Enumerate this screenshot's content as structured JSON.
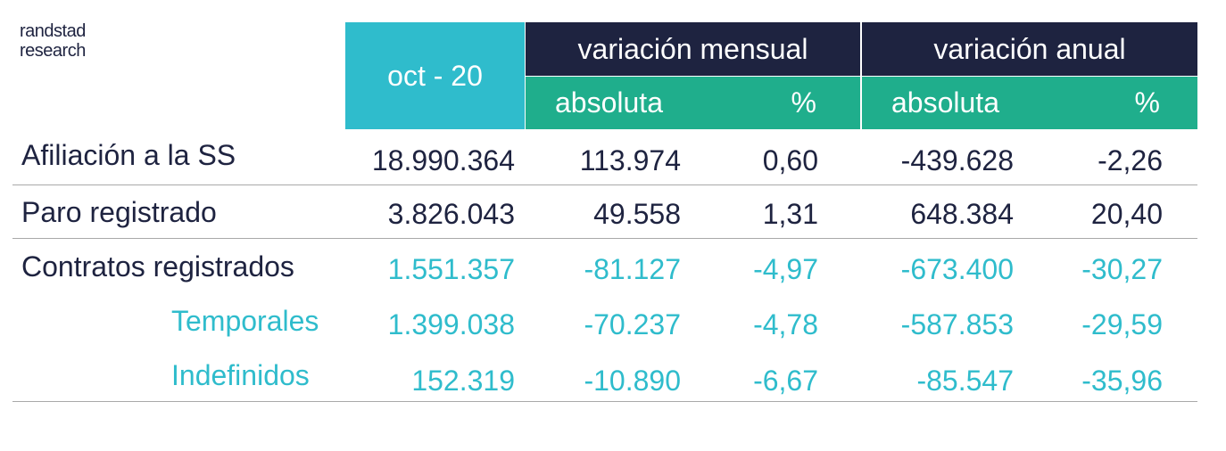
{
  "logo": {
    "line1": "randstad",
    "line2": "research"
  },
  "chart_data": {
    "type": "table",
    "header": {
      "date": "oct - 20",
      "groups": [
        "variación mensual",
        "variación anual"
      ],
      "subheaders": [
        "absoluta",
        "%",
        "absoluta",
        "%"
      ]
    },
    "rows": [
      {
        "label": "Afiliación a la SS",
        "values": [
          "18.990.364",
          "113.974",
          "0,60",
          "-439.628",
          "-2,26"
        ]
      },
      {
        "label": "Paro registrado",
        "values": [
          "3.826.043",
          "49.558",
          "1,31",
          "648.384",
          "20,40"
        ]
      },
      {
        "label": "Contratos registrados",
        "values": [
          "1.551.357",
          "-81.127",
          "-4,97",
          "-673.400",
          "-30,27"
        ]
      },
      {
        "label": "Temporales",
        "values": [
          "1.399.038",
          "-70.237",
          "-4,78",
          "-587.853",
          "-29,59"
        ]
      },
      {
        "label": "Indefinidos",
        "values": [
          "152.319",
          "-10.890",
          "-6,67",
          "-85.547",
          "-35,96"
        ]
      }
    ]
  },
  "colors": {
    "teal": "#2fbccc",
    "navy": "#1e2340",
    "green": "#1fae8c",
    "rule": "#a9a9a9"
  }
}
